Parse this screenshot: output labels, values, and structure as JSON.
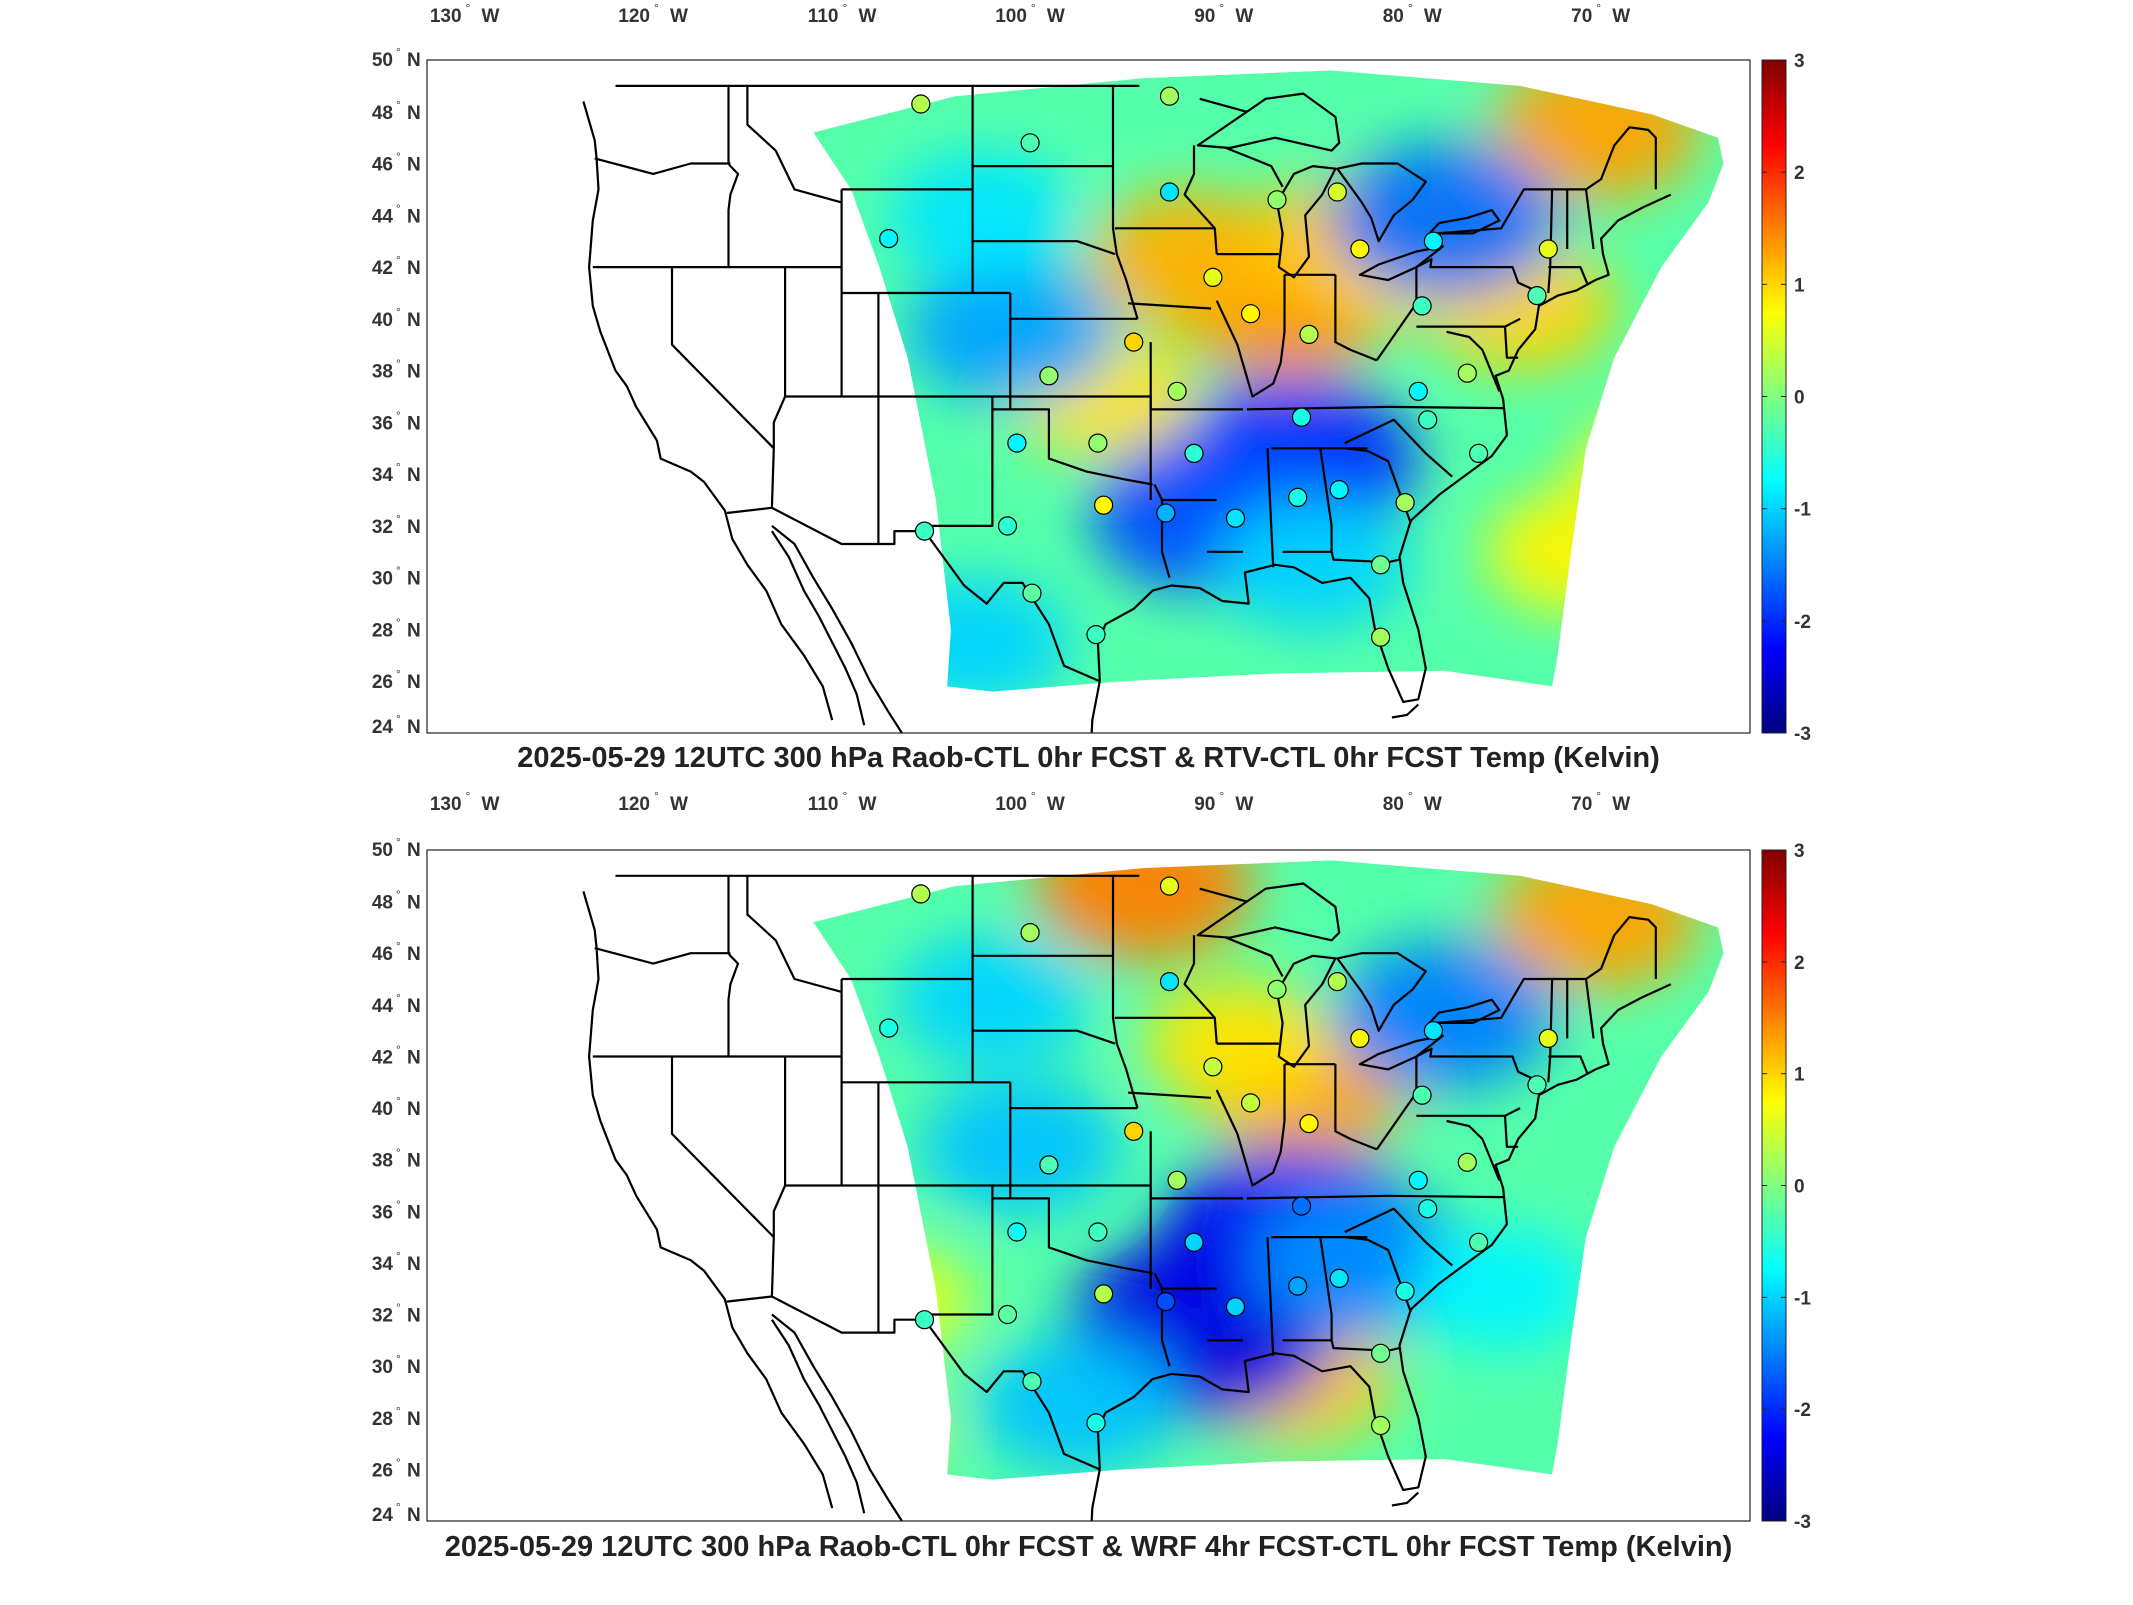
{
  "panels": [
    {
      "title": "2025-05-29 12UTC 300 hPa Raob-CTL 0hr FCST & RTV-CTL 0hr FCST Temp (Kelvin)",
      "lon_ticks": [
        "130",
        "120",
        "110",
        "100",
        "90",
        "80",
        "70"
      ],
      "lon_hemi": "W",
      "lat_ticks": [
        "50",
        "48",
        "46",
        "44",
        "42",
        "40",
        "38",
        "36",
        "34",
        "32",
        "30",
        "28",
        "26",
        "24"
      ],
      "lat_hemi": "N",
      "degree_symbol": "°",
      "colorbar": {
        "ticks": [
          "3",
          "2",
          "1",
          "0",
          "-1",
          "-2",
          "-3"
        ],
        "range": [
          -3,
          3
        ],
        "colormap": "jet"
      },
      "anomaly_zones": [
        {
          "lon": -87.5,
          "lat": 40.5,
          "value": 1.4
        },
        {
          "lon": -92.5,
          "lat": 42.3,
          "value": 1.2
        },
        {
          "lon": -84.5,
          "lat": 42.8,
          "value": 1.1
        },
        {
          "lon": -80.0,
          "lat": 42.2,
          "value": 0.9
        },
        {
          "lon": -71.0,
          "lat": 47.3,
          "value": 1.3
        },
        {
          "lon": -75.0,
          "lat": 40.5,
          "value": 1.0
        },
        {
          "lon": -97.0,
          "lat": 37.0,
          "value": 0.9
        },
        {
          "lon": -67.5,
          "lat": 34.0,
          "value": 0.8
        },
        {
          "lon": -72.0,
          "lat": 31.0,
          "value": 0.8
        },
        {
          "lon": -87.0,
          "lat": 34.5,
          "value": -2.0
        },
        {
          "lon": -91.5,
          "lat": 32.5,
          "value": -1.8
        },
        {
          "lon": -79.0,
          "lat": 43.8,
          "value": -1.6
        },
        {
          "lon": -102.0,
          "lat": 39.5,
          "value": -1.3
        },
        {
          "lon": -104.0,
          "lat": 27.5,
          "value": -1.0
        },
        {
          "lon": -103.5,
          "lat": 44.0,
          "value": -0.9
        },
        {
          "lon": -86.0,
          "lat": 30.5,
          "value": -1.0
        }
      ],
      "stations": [
        {
          "lon": -106.8,
          "lat": 48.3,
          "value": 0.3
        },
        {
          "lon": -101.0,
          "lat": 46.8,
          "value": -0.3
        },
        {
          "lon": -93.6,
          "lat": 48.6,
          "value": 0.2
        },
        {
          "lon": -93.6,
          "lat": 44.9,
          "value": -0.9
        },
        {
          "lon": -108.5,
          "lat": 43.1,
          "value": -0.8
        },
        {
          "lon": -87.9,
          "lat": 44.6,
          "value": 0.1
        },
        {
          "lon": -84.7,
          "lat": 44.9,
          "value": 0.5
        },
        {
          "lon": -91.3,
          "lat": 41.6,
          "value": 0.6
        },
        {
          "lon": -83.5,
          "lat": 42.7,
          "value": 0.8
        },
        {
          "lon": -79.6,
          "lat": 43.0,
          "value": -0.8
        },
        {
          "lon": -73.5,
          "lat": 42.7,
          "value": 0.6
        },
        {
          "lon": -89.3,
          "lat": 40.2,
          "value": 0.8
        },
        {
          "lon": -80.2,
          "lat": 40.5,
          "value": -0.4
        },
        {
          "lon": -74.1,
          "lat": 40.9,
          "value": -0.3
        },
        {
          "lon": -86.2,
          "lat": 39.4,
          "value": 0.3
        },
        {
          "lon": -95.5,
          "lat": 39.1,
          "value": 1.0
        },
        {
          "lon": -100.0,
          "lat": 37.8,
          "value": 0.1
        },
        {
          "lon": -93.2,
          "lat": 37.2,
          "value": 0.2
        },
        {
          "lon": -80.4,
          "lat": 37.2,
          "value": -0.8
        },
        {
          "lon": -77.8,
          "lat": 37.9,
          "value": 0.2
        },
        {
          "lon": -86.6,
          "lat": 36.2,
          "value": -0.6
        },
        {
          "lon": -79.9,
          "lat": 36.1,
          "value": -0.4
        },
        {
          "lon": -101.7,
          "lat": 35.2,
          "value": -0.8
        },
        {
          "lon": -97.4,
          "lat": 35.2,
          "value": 0.1
        },
        {
          "lon": -92.3,
          "lat": 34.8,
          "value": -0.5
        },
        {
          "lon": -77.2,
          "lat": 34.8,
          "value": -0.3
        },
        {
          "lon": -106.6,
          "lat": 31.8,
          "value": -0.4
        },
        {
          "lon": -102.2,
          "lat": 32.0,
          "value": -0.5
        },
        {
          "lon": -97.1,
          "lat": 32.8,
          "value": 0.8
        },
        {
          "lon": -93.8,
          "lat": 32.5,
          "value": -1.2
        },
        {
          "lon": -90.1,
          "lat": 32.3,
          "value": -0.9
        },
        {
          "lon": -86.8,
          "lat": 33.1,
          "value": -0.6
        },
        {
          "lon": -84.6,
          "lat": 33.4,
          "value": -0.8
        },
        {
          "lon": -81.1,
          "lat": 32.9,
          "value": 0.2
        },
        {
          "lon": -100.9,
          "lat": 29.4,
          "value": -0.2
        },
        {
          "lon": -82.4,
          "lat": 30.5,
          "value": -0.1
        },
        {
          "lon": -97.5,
          "lat": 27.8,
          "value": -0.4
        },
        {
          "lon": -82.4,
          "lat": 27.7,
          "value": 0.2
        }
      ]
    },
    {
      "title": "2025-05-29 12UTC 300 hPa Raob-CTL 0hr FCST & WRF 4hr FCST-CTL 0hr FCST Temp (Kelvin)",
      "lon_ticks": [
        "130",
        "120",
        "110",
        "100",
        "90",
        "80",
        "70"
      ],
      "lon_hemi": "W",
      "lat_ticks": [
        "50",
        "48",
        "46",
        "44",
        "42",
        "40",
        "38",
        "36",
        "34",
        "32",
        "30",
        "28",
        "26",
        "24"
      ],
      "lat_hemi": "N",
      "degree_symbol": "°",
      "colorbar": {
        "ticks": [
          "3",
          "2",
          "1",
          "0",
          "-1",
          "-2",
          "-3"
        ],
        "range": [
          -3,
          3
        ],
        "colormap": "jet"
      },
      "anomaly_zones": [
        {
          "lon": -95.0,
          "lat": 48.6,
          "value": 1.5
        },
        {
          "lon": -86.5,
          "lat": 40.7,
          "value": 1.3
        },
        {
          "lon": -90.0,
          "lat": 42.5,
          "value": 0.9
        },
        {
          "lon": -71.0,
          "lat": 47.3,
          "value": 1.3
        },
        {
          "lon": -87.0,
          "lat": 29.5,
          "value": 1.1
        },
        {
          "lon": -111.0,
          "lat": 27.5,
          "value": 0.9
        },
        {
          "lon": -108.5,
          "lat": 32.5,
          "value": 0.6
        },
        {
          "lon": -87.0,
          "lat": 35.0,
          "value": -2.3
        },
        {
          "lon": -91.8,
          "lat": 31.5,
          "value": -2.4
        },
        {
          "lon": -79.0,
          "lat": 43.6,
          "value": -1.5
        },
        {
          "lon": -83.5,
          "lat": 34.0,
          "value": -1.4
        },
        {
          "lon": -101.5,
          "lat": 38.5,
          "value": -1.1
        },
        {
          "lon": -103.0,
          "lat": 44.2,
          "value": -1.0
        },
        {
          "lon": -98.5,
          "lat": 28.5,
          "value": -1.1
        },
        {
          "lon": -76.0,
          "lat": 33.0,
          "value": -0.8
        }
      ],
      "stations": [
        {
          "lon": -106.8,
          "lat": 48.3,
          "value": 0.3
        },
        {
          "lon": -101.0,
          "lat": 46.8,
          "value": 0.2
        },
        {
          "lon": -93.6,
          "lat": 48.6,
          "value": 0.6
        },
        {
          "lon": -93.6,
          "lat": 44.9,
          "value": -0.9
        },
        {
          "lon": -108.5,
          "lat": 43.1,
          "value": -0.6
        },
        {
          "lon": -87.9,
          "lat": 44.6,
          "value": 0.1
        },
        {
          "lon": -84.7,
          "lat": 44.9,
          "value": 0.3
        },
        {
          "lon": -91.3,
          "lat": 41.6,
          "value": 0.4
        },
        {
          "lon": -83.5,
          "lat": 42.7,
          "value": 0.8
        },
        {
          "lon": -79.6,
          "lat": 43.0,
          "value": -0.9
        },
        {
          "lon": -73.5,
          "lat": 42.7,
          "value": 0.6
        },
        {
          "lon": -89.3,
          "lat": 40.2,
          "value": 0.4
        },
        {
          "lon": -80.2,
          "lat": 40.5,
          "value": -0.3
        },
        {
          "lon": -74.1,
          "lat": 40.9,
          "value": -0.3
        },
        {
          "lon": -86.2,
          "lat": 39.4,
          "value": 0.8
        },
        {
          "lon": -95.5,
          "lat": 39.1,
          "value": 1.0
        },
        {
          "lon": -100.0,
          "lat": 37.8,
          "value": -0.3
        },
        {
          "lon": -93.2,
          "lat": 37.2,
          "value": 0.2
        },
        {
          "lon": -80.4,
          "lat": 37.2,
          "value": -0.8
        },
        {
          "lon": -77.8,
          "lat": 37.9,
          "value": 0.2
        },
        {
          "lon": -86.6,
          "lat": 36.2,
          "value": -1.6
        },
        {
          "lon": -79.9,
          "lat": 36.1,
          "value": -0.6
        },
        {
          "lon": -101.7,
          "lat": 35.2,
          "value": -0.7
        },
        {
          "lon": -97.4,
          "lat": 35.2,
          "value": -0.4
        },
        {
          "lon": -92.3,
          "lat": 34.8,
          "value": -1.0
        },
        {
          "lon": -77.2,
          "lat": 34.8,
          "value": -0.3
        },
        {
          "lon": -106.6,
          "lat": 31.8,
          "value": -0.4
        },
        {
          "lon": -102.2,
          "lat": 32.0,
          "value": -0.2
        },
        {
          "lon": -97.1,
          "lat": 32.8,
          "value": 0.3
        },
        {
          "lon": -93.8,
          "lat": 32.5,
          "value": -1.8
        },
        {
          "lon": -90.1,
          "lat": 32.3,
          "value": -1.0
        },
        {
          "lon": -86.8,
          "lat": 33.1,
          "value": -1.3
        },
        {
          "lon": -84.6,
          "lat": 33.4,
          "value": -0.9
        },
        {
          "lon": -81.1,
          "lat": 32.9,
          "value": -0.6
        },
        {
          "lon": -100.9,
          "lat": 29.4,
          "value": -0.3
        },
        {
          "lon": -82.4,
          "lat": 30.5,
          "value": -0.1
        },
        {
          "lon": -97.5,
          "lat": 27.8,
          "value": -0.6
        },
        {
          "lon": -82.4,
          "lat": 27.7,
          "value": 0.2
        }
      ]
    }
  ]
}
